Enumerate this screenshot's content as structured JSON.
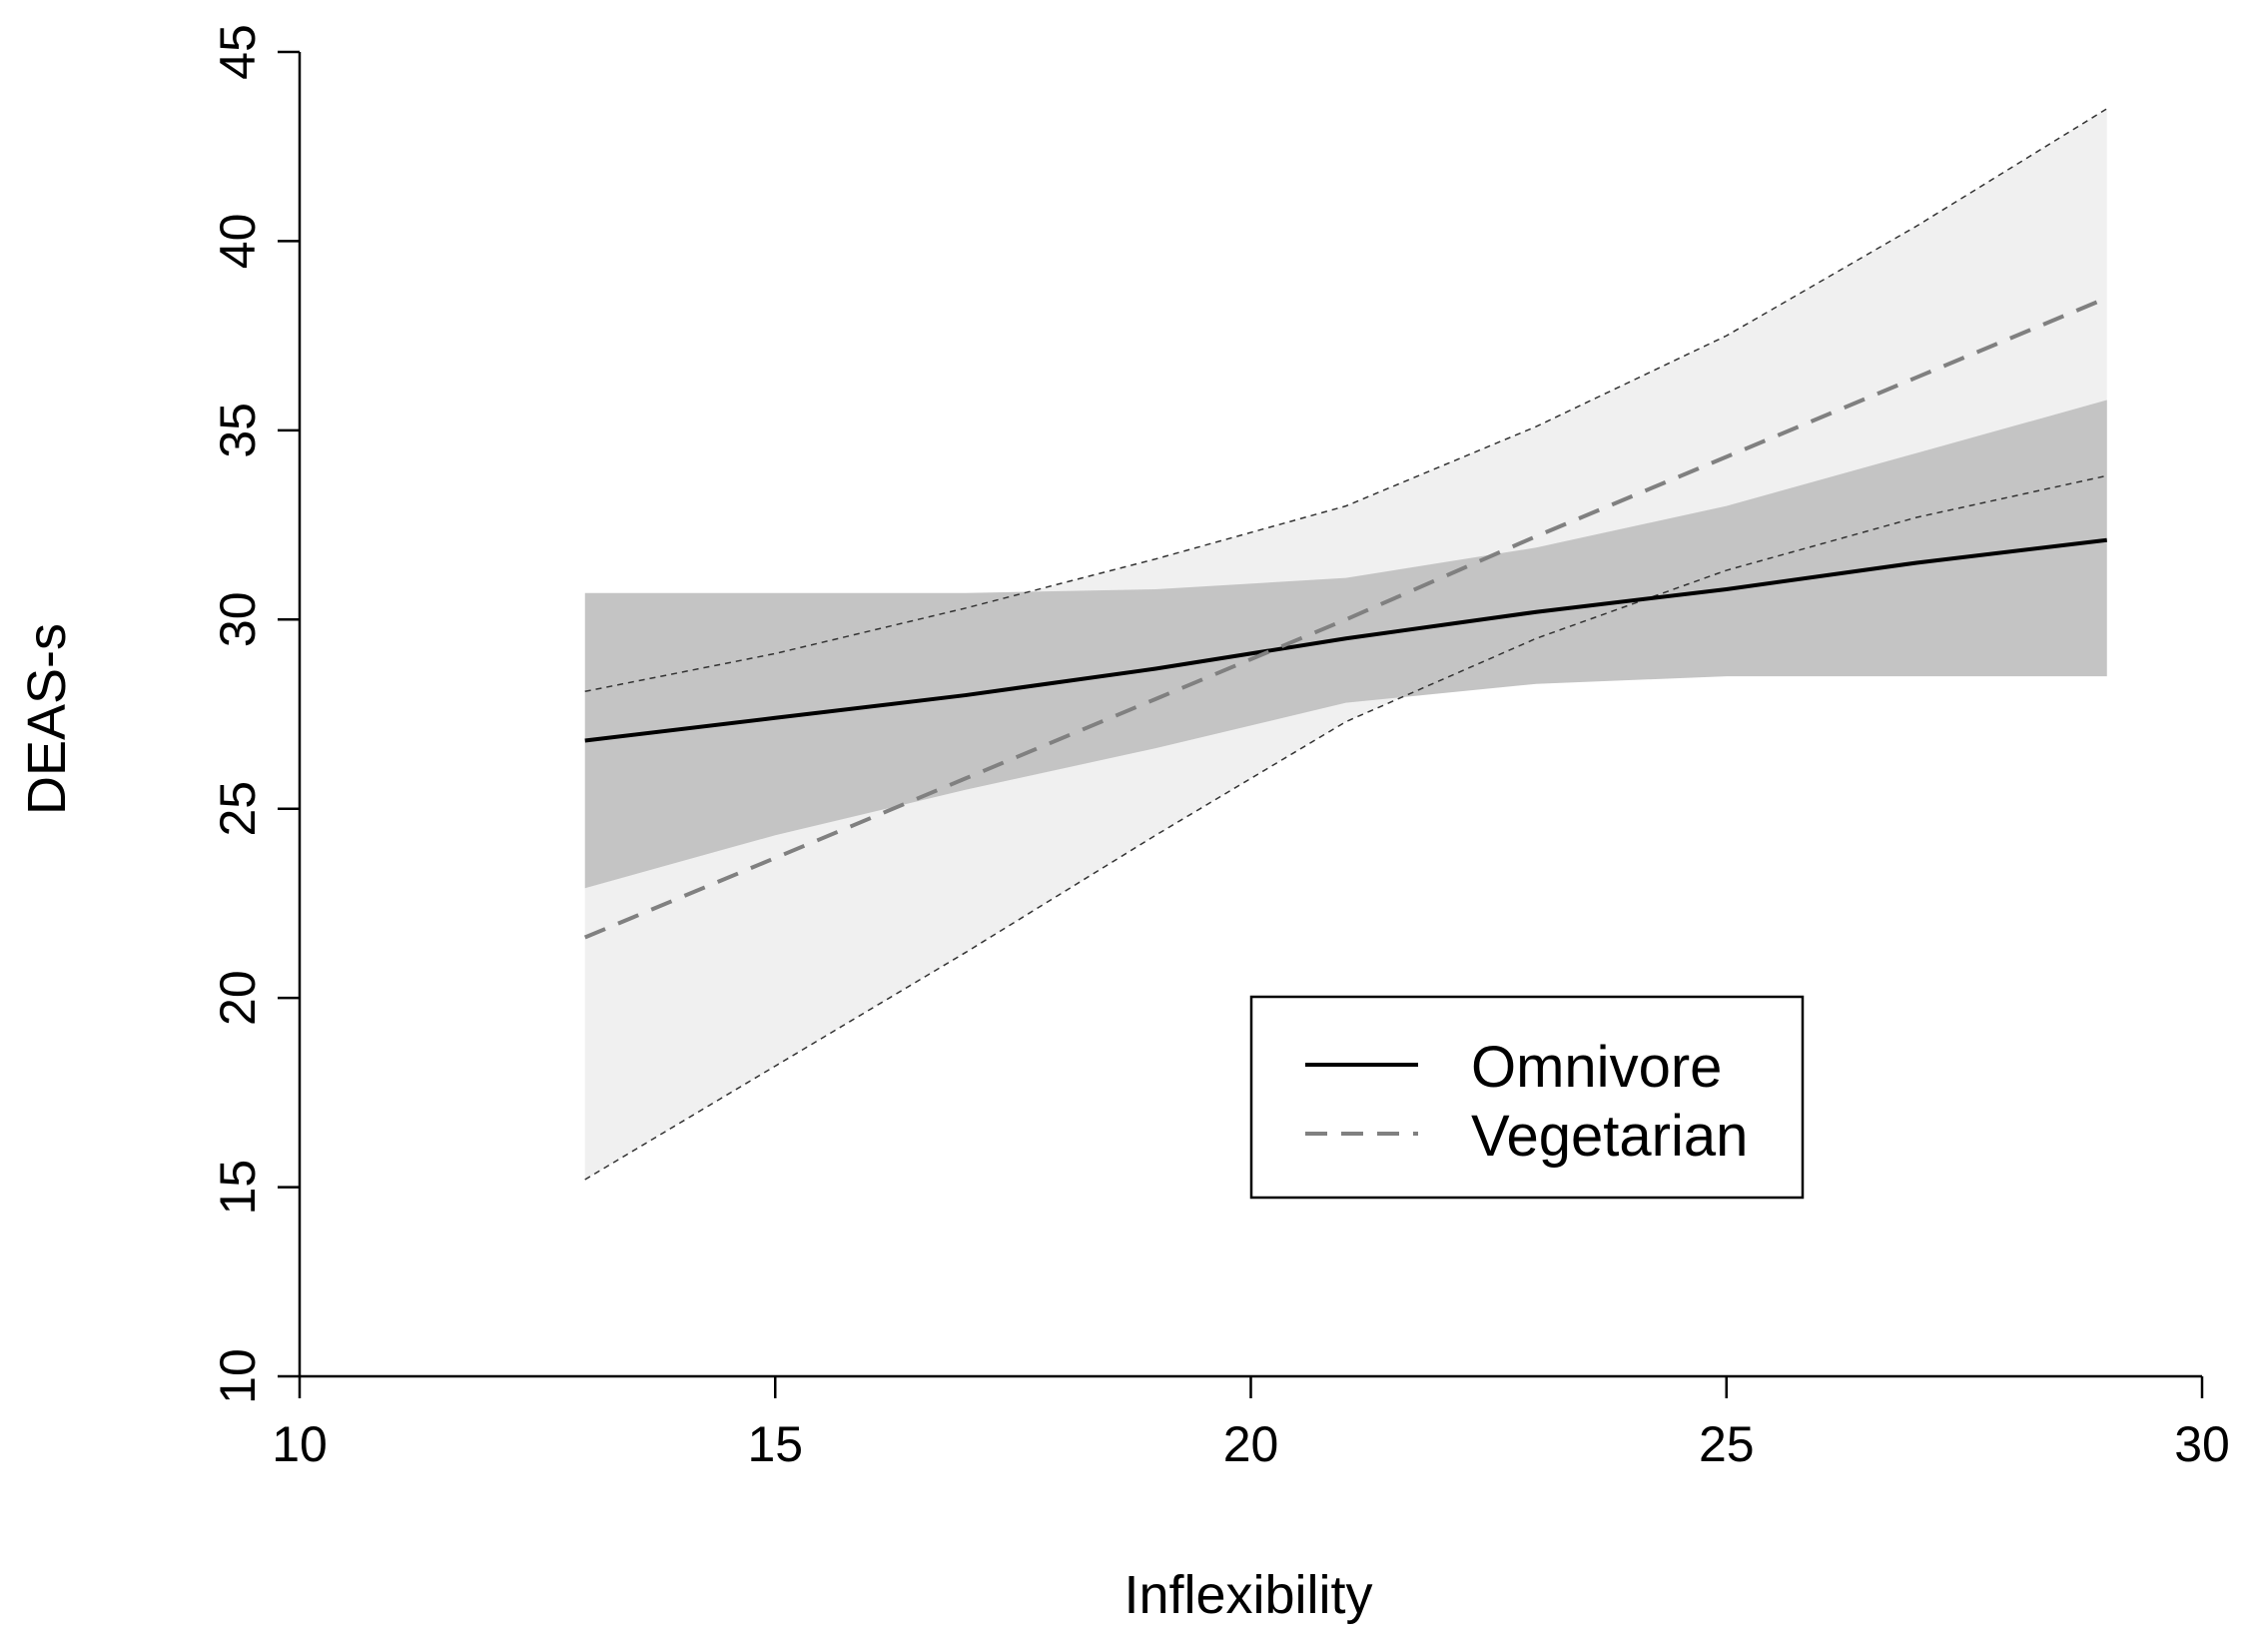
{
  "chart_data": {
    "type": "line",
    "xlabel": "Inflexibility",
    "ylabel": "DEAS-s",
    "xlim": [
      10,
      30
    ],
    "ylim": [
      10,
      45
    ],
    "x_ticks": [
      "10",
      "15",
      "20",
      "25",
      "30"
    ],
    "y_ticks": [
      "10",
      "15",
      "20",
      "25",
      "30",
      "35",
      "40",
      "45"
    ],
    "grid": false,
    "legend_position": "bottom-right",
    "series": [
      {
        "name": "Omnivore",
        "style": "solid",
        "color": "#000000",
        "band_color": "#c4c4c4",
        "x": [
          13,
          15,
          17,
          19,
          21,
          23,
          25,
          27,
          29
        ],
        "y": [
          26.8,
          27.4,
          28.0,
          28.7,
          29.5,
          30.2,
          30.8,
          31.5,
          32.1
        ],
        "lower": [
          22.9,
          24.3,
          25.5,
          26.6,
          27.8,
          28.3,
          28.5,
          28.5,
          28.5
        ],
        "upper": [
          30.7,
          30.7,
          30.7,
          30.8,
          31.1,
          31.9,
          33.0,
          34.4,
          35.8
        ]
      },
      {
        "name": "Vegetarian",
        "style": "dashed",
        "color": "#808080",
        "band_color": "#f0f0f0",
        "x": [
          13,
          15,
          17,
          19,
          21,
          23,
          25,
          27,
          29
        ],
        "y": [
          21.6,
          23.7,
          25.8,
          27.9,
          30.0,
          32.2,
          34.3,
          36.4,
          38.5
        ],
        "lower": [
          15.2,
          18.2,
          21.2,
          24.3,
          27.3,
          29.5,
          31.3,
          32.7,
          33.8
        ],
        "upper": [
          28.1,
          29.1,
          30.3,
          31.6,
          33.0,
          35.1,
          37.5,
          40.4,
          43.5
        ]
      }
    ]
  }
}
